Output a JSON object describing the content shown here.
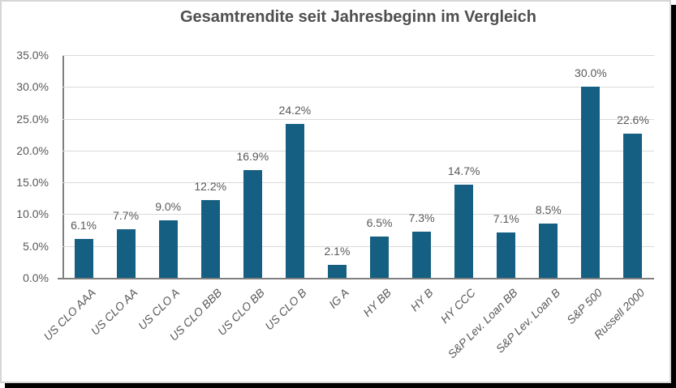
{
  "title": "Gesamtrendite seit Jahresbeginn im Vergleich",
  "colors": {
    "bar": "#156082",
    "gridline": "#d9d9d9",
    "axis_line": "#7f7f7f",
    "text": "#595959",
    "title_text": "#4f4f4f",
    "card_border": "#d6d6d6",
    "shadow": "#000000",
    "background": "#ffffff"
  },
  "chart_data": {
    "type": "bar",
    "title": "Gesamtrendite seit Jahresbeginn im Vergleich",
    "categories": [
      "US CLO AAA",
      "US CLO AA",
      "US CLO A",
      "US CLO BBB",
      "US CLO BB",
      "US CLO B",
      "IG A",
      "HY BB",
      "HY B",
      "HY CCC",
      "S&P Lev. Loan BB",
      "S&P Lev. Loan B",
      "S&P 500",
      "Russell 2000"
    ],
    "values": [
      6.1,
      7.7,
      9.0,
      12.2,
      16.9,
      24.2,
      2.1,
      6.5,
      7.3,
      14.7,
      7.1,
      8.5,
      30.0,
      22.6
    ],
    "data_labels": [
      "6.1%",
      "7.7%",
      "9.0%",
      "12.2%",
      "16.9%",
      "24.2%",
      "2.1%",
      "6.5%",
      "7.3%",
      "14.7%",
      "7.1%",
      "8.5%",
      "30.0%",
      "22.6%"
    ],
    "xlabel": "",
    "ylabel": "",
    "ylim": [
      0,
      35
    ],
    "ytick_step": 5,
    "ytick_labels": [
      "0.0%",
      "5.0%",
      "10.0%",
      "15.0%",
      "20.0%",
      "25.0%",
      "30.0%",
      "35.0%"
    ],
    "grid": true,
    "legend_position": "none"
  }
}
